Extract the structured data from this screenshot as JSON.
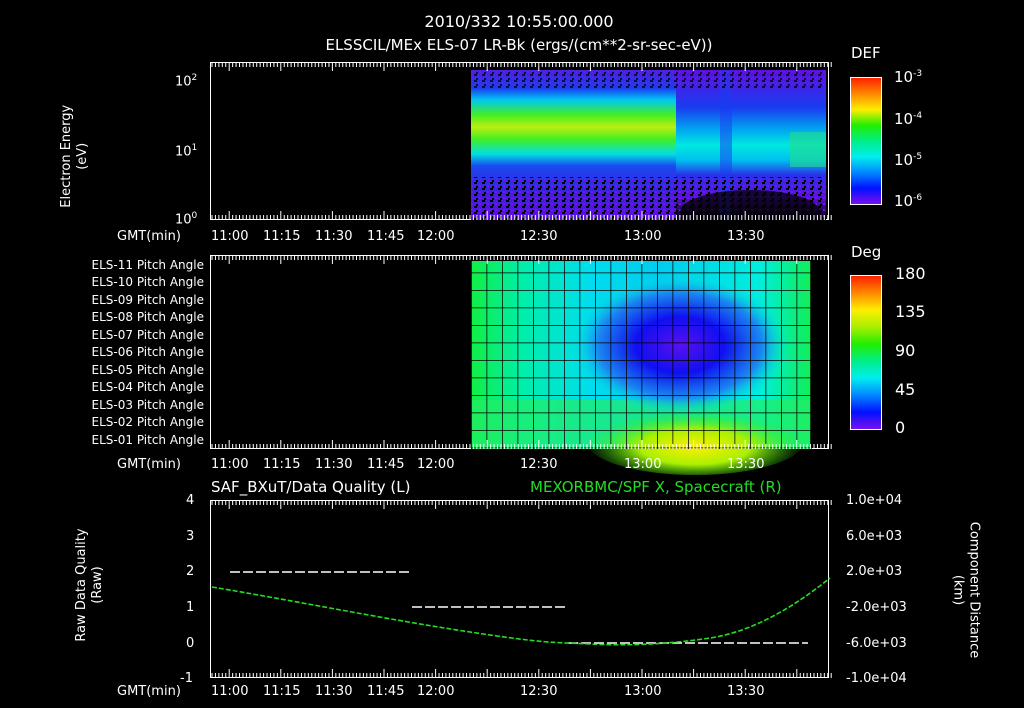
{
  "header": {
    "timestamp": "2010/332 10:55:00.000",
    "subtitle": "ELSSCIL/MEx ELS-07 LR-Bk  (ergs/(cm**2-sr-sec-eV))"
  },
  "panels": {
    "energy": {
      "ylabel_line1": "Electron Energy",
      "ylabel_line2": "(eV)",
      "yticks": [
        "10",
        "10",
        "10"
      ],
      "yexp": [
        "2",
        "1",
        "0"
      ],
      "colorbar_title": "DEF",
      "colorbar_ticks": [
        "10",
        "10",
        "10",
        "10"
      ],
      "colorbar_exp": [
        "-3",
        "-4",
        "-5",
        "-6"
      ],
      "xaxis_label": "GMT(min)"
    },
    "pitch": {
      "rows": [
        "ELS-11 Pitch Angle",
        "ELS-10 Pitch Angle",
        "ELS-09 Pitch Angle",
        "ELS-08 Pitch Angle",
        "ELS-07 Pitch Angle",
        "ELS-06 Pitch Angle",
        "ELS-05 Pitch Angle",
        "ELS-04 Pitch Angle",
        "ELS-03 Pitch Angle",
        "ELS-02 Pitch Angle",
        "ELS-01 Pitch Angle"
      ],
      "colorbar_title": "Deg",
      "colorbar_ticks": [
        "180",
        "135",
        "90",
        "45",
        "0"
      ],
      "xaxis_label": "GMT(min)"
    },
    "quality": {
      "title_left": "SAF_BXuT/Data Quality (L)",
      "title_right": "MEXORBMC/SPF X, Spacecraft (R)",
      "ylabel_left_line1": "Raw Data Quality",
      "ylabel_left_line2": "(Raw)",
      "yticks_left": [
        "4",
        "3",
        "2",
        "1",
        "0",
        "-1"
      ],
      "ylabel_right_line1": "Component Distance",
      "ylabel_right_line2": "(km)",
      "yticks_right": [
        "1.0e+04",
        "6.0e+03",
        "2.0e+03",
        "-2.0e+03",
        "-6.0e+03",
        "-1.0e+04"
      ],
      "xaxis_label": "GMT(min)"
    }
  },
  "time_ticks": [
    "11:00",
    "11:15",
    "11:30",
    "11:45",
    "12:00",
    "12:30",
    "13:00",
    "13:30"
  ],
  "colors": {
    "background": "#000000",
    "axis": "#ffffff",
    "spacecraft_line": "#22dd22"
  },
  "chart_data": [
    {
      "type": "heatmap",
      "title": "ELSSCIL/MEx ELS-07 LR-Bk (ergs/(cm**2-sr-sec-eV))",
      "xlabel": "GMT(min)",
      "ylabel": "Electron Energy (eV)",
      "yscale": "log",
      "ylim": [
        1,
        150
      ],
      "xlim": [
        "10:55",
        "13:55"
      ],
      "data_start": "12:07",
      "colorbar": {
        "label": "DEF",
        "scale": "log",
        "range": [
          1e-06,
          0.001
        ]
      },
      "description": "Peak flux ~2e-4 near 15-30 eV from 12:07 to 12:55, weakening after 13:00 with intermittent bursts; low energy (<5 eV) background sparse after 13:00"
    },
    {
      "type": "heatmap",
      "title": "ELS Pitch Angle",
      "xlabel": "GMT(min)",
      "categories": [
        "ELS-01",
        "ELS-02",
        "ELS-03",
        "ELS-04",
        "ELS-05",
        "ELS-06",
        "ELS-07",
        "ELS-08",
        "ELS-09",
        "ELS-10",
        "ELS-11"
      ],
      "colorbar": {
        "label": "Deg",
        "range": [
          0,
          180
        ],
        "ticks": [
          0,
          45,
          90,
          135,
          180
        ]
      },
      "xlim": [
        "10:55",
        "13:55"
      ],
      "data_start": "12:07",
      "data_end": "13:50",
      "description": "Minimum pitch angle (~15-25 deg) for ELS-06..ELS-09 around 13:05-13:35; maximum (~135 deg) for ELS-01 around 13:15-13:25"
    },
    {
      "type": "line",
      "title": "SAF_BXuT/Data Quality (L) / MEXORBMC/SPF X, Spacecraft (R)",
      "xlabel": "GMT(min)",
      "ylabel": "Raw Data Quality (Raw)",
      "ylabel_right": "Component Distance (km)",
      "ylim": [
        -1,
        4
      ],
      "ylim_right": [
        -10000,
        10000
      ],
      "series": [
        {
          "name": "Data Quality (L)",
          "x": [
            "10:58",
            "11:54",
            "11:55",
            "12:44",
            "12:45",
            "13:53"
          ],
          "values": [
            2,
            2,
            1,
            1,
            0,
            0
          ]
        },
        {
          "name": "SPF X Spacecraft (R)",
          "x": [
            "10:55",
            "11:15",
            "11:30",
            "11:45",
            "12:00",
            "12:30",
            "12:55",
            "13:10",
            "13:30",
            "13:55"
          ],
          "values": [
            2400,
            600,
            -700,
            -2000,
            -3200,
            -5200,
            -6000,
            -5800,
            -3500,
            1600
          ]
        }
      ]
    }
  ]
}
